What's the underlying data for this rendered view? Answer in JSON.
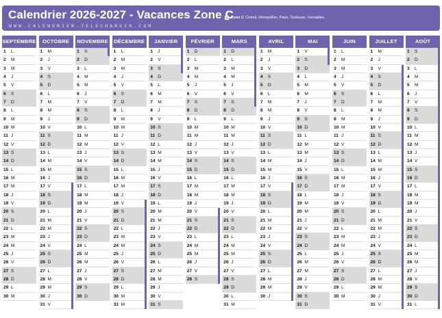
{
  "title": "Calendrier 2026-2027 - Vacances Zone C",
  "website": "WWW.CALENDRIER-TELECHARGER.COM",
  "legend": {
    "zone": "Zone C",
    "cities": "Creteil, Montpellier, Paris, Toulouse, Versailles."
  },
  "colors": {
    "accent": "#7063ad",
    "weekend": "#dadada",
    "holiday_bar": "#7063ad"
  },
  "months": [
    {
      "name": "SEPTEMBRE",
      "first": 1,
      "days": 30,
      "holidays": []
    },
    {
      "name": "OCTOBRE",
      "first": 3,
      "days": 31,
      "holidays": [
        [
          17,
          31
        ]
      ]
    },
    {
      "name": "NOVEMBRE",
      "first": 6,
      "days": 30,
      "holidays": [
        [
          1,
          1
        ]
      ]
    },
    {
      "name": "DÉCEMBRE",
      "first": 1,
      "days": 31,
      "holidays": [
        [
          19,
          31
        ]
      ]
    },
    {
      "name": "JANVIER",
      "first": 4,
      "days": 31,
      "holidays": [
        [
          1,
          3
        ]
      ]
    },
    {
      "name": "FÉVRIER",
      "first": 0,
      "days": 28,
      "holidays": [
        [
          20,
          28
        ]
      ]
    },
    {
      "name": "MARS",
      "first": 0,
      "days": 31,
      "holidays": [
        [
          1,
          7
        ]
      ]
    },
    {
      "name": "AVRIL",
      "first": 3,
      "days": 30,
      "holidays": [
        [
          17,
          30
        ]
      ]
    },
    {
      "name": "MAI",
      "first": 5,
      "days": 31,
      "holidays": [
        [
          1,
          2
        ]
      ]
    },
    {
      "name": "JUIN",
      "first": 1,
      "days": 30,
      "holidays": []
    },
    {
      "name": "JUILLET",
      "first": 3,
      "days": 31,
      "holidays": [
        [
          3,
          31
        ]
      ]
    },
    {
      "name": "AOÛT",
      "first": 6,
      "days": 31,
      "holidays": [
        [
          1,
          31
        ]
      ]
    }
  ],
  "weekday_letters": [
    "D",
    "L",
    "M",
    "M",
    "J",
    "V",
    "S"
  ]
}
